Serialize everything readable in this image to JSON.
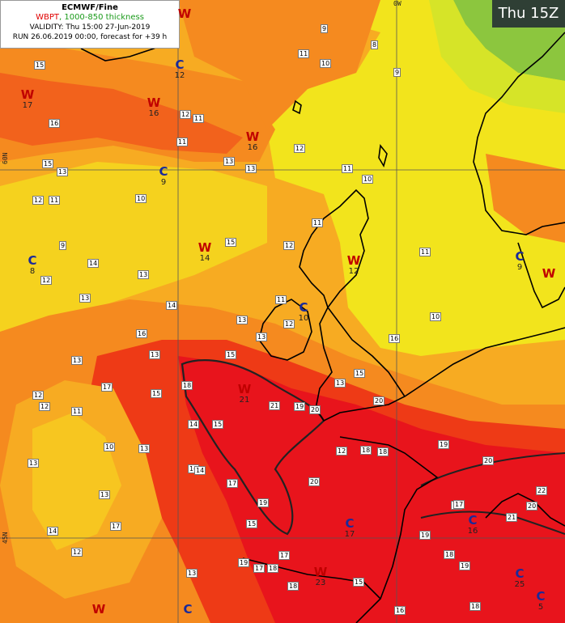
{
  "header": {
    "title": "ECMWF/Fine",
    "wbpt_label": "WBPT",
    "thickness_label": ", 1000-850 thickness",
    "validity": "VALIDITY: Thu 15:00 27-Jun-2019",
    "run": "RUN 26.06.2019 00:00, forecast for +39 h"
  },
  "time_badge": "Thu 15Z",
  "grid_labels": {
    "top_meridian": "0W",
    "left_lat_north": "60N",
    "left_lat_south": "45N"
  },
  "colors": {
    "deep_red": "#e8141c",
    "red": "#ee3a16",
    "orange_red": "#f2621c",
    "orange": "#f58a1f",
    "amber": "#f7ab22",
    "yellow_orange": "#f7c620",
    "yellow": "#f2e41c",
    "yellow_green": "#d6e428",
    "green": "#8cc63e",
    "coast": "#000000",
    "gridline": "#555555"
  },
  "centers": [
    {
      "type": "W",
      "value": "17"
    },
    {
      "type": "W",
      "value": "16"
    },
    {
      "type": "W",
      "value": "16"
    },
    {
      "type": "W",
      "value": ""
    },
    {
      "type": "C",
      "value": "12"
    },
    {
      "type": "C",
      "value": "9"
    },
    {
      "type": "C",
      "value": "8"
    },
    {
      "type": "W",
      "value": "14"
    },
    {
      "type": "W",
      "value": "12"
    },
    {
      "type": "C",
      "value": "10"
    },
    {
      "type": "C",
      "value": "9"
    },
    {
      "type": "W",
      "value": ""
    },
    {
      "type": "W",
      "value": "21"
    },
    {
      "type": "C",
      "value": "17"
    },
    {
      "type": "C",
      "value": "16"
    },
    {
      "type": "W",
      "value": "23"
    },
    {
      "type": "W",
      "value": ""
    },
    {
      "type": "C",
      "value": ""
    },
    {
      "type": "C",
      "value": "25"
    },
    {
      "type": "C",
      "value": "5"
    }
  ],
  "contour_labels": [
    "15",
    "16",
    "15",
    "13",
    "12",
    "11",
    "10",
    "9",
    "12",
    "14",
    "13",
    "13",
    "14",
    "15",
    "12",
    "11",
    "11",
    "13",
    "13",
    "12",
    "11",
    "10",
    "9",
    "8",
    "9",
    "11",
    "10",
    "12",
    "11",
    "13",
    "11",
    "12",
    "13",
    "15",
    "16",
    "13",
    "15",
    "13",
    "12",
    "12",
    "11",
    "10",
    "13",
    "14",
    "15",
    "17",
    "18",
    "19",
    "20",
    "20",
    "21",
    "20",
    "18",
    "19",
    "19",
    "16",
    "15",
    "17",
    "14",
    "13",
    "17",
    "14",
    "13",
    "12",
    "11",
    "10",
    "16",
    "15",
    "13",
    "12",
    "18",
    "17",
    "19",
    "20",
    "18",
    "17",
    "21",
    "22",
    "20",
    "19",
    "18",
    "16",
    "17",
    "15",
    "18",
    "19",
    "18",
    "17",
    "13"
  ]
}
